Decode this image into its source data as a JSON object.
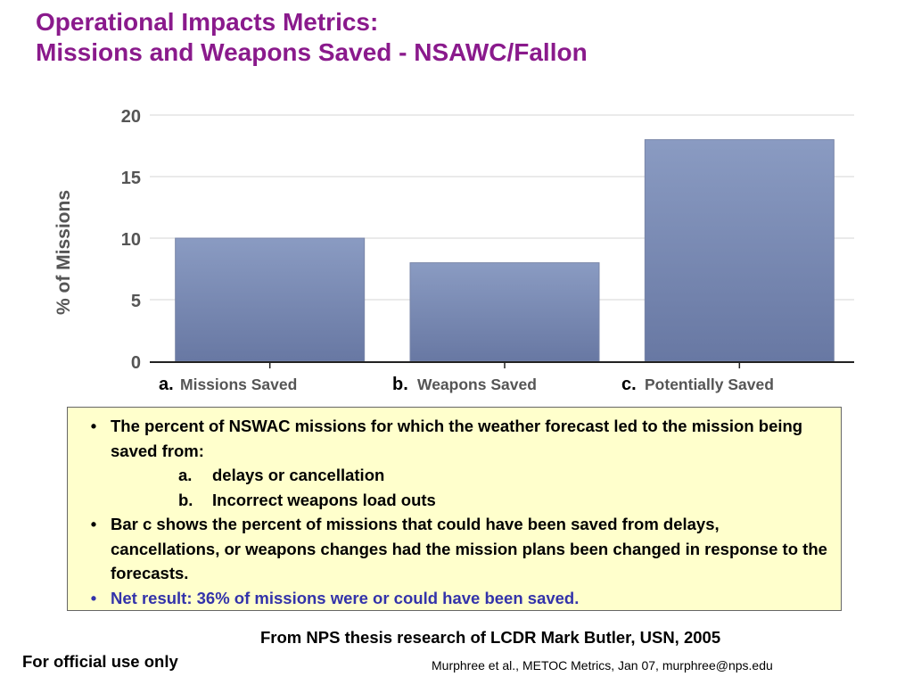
{
  "title": {
    "line1": "Operational Impacts Metrics:",
    "line2": "Missions and Weapons Saved - NSAWC/Fallon"
  },
  "colors": {
    "title": "#8a1a8c",
    "bar_top": "#8a9bc2",
    "bar_bottom": "#6878a3",
    "notes_bg": "#ffffcc",
    "highlight": "#3333aa"
  },
  "chart_data": {
    "type": "bar",
    "categories": [
      "Missions Saved",
      "Weapons Saved",
      "Potentially Saved"
    ],
    "category_prefixes": [
      "a.",
      "b.",
      "c."
    ],
    "values": [
      10,
      8,
      18
    ],
    "ylabel": "% of Missions",
    "xlabel": "",
    "ylim": [
      0,
      20
    ],
    "yticks": [
      0,
      5,
      10,
      15,
      20
    ],
    "grid": true
  },
  "notes": {
    "bullet1": "The percent of NSWAC missions for which the weather forecast led to the mission being saved from:",
    "sub_a_mark": "a.",
    "sub_a_text": "delays or cancellation",
    "sub_b_mark": "b.",
    "sub_b_text": "Incorrect weapons load outs",
    "bullet2": "Bar c shows the percent of missions that could have been saved from delays, cancellations, or weapons changes had the mission plans been changed in response to the forecasts.",
    "bullet3": "Net result: 36% of missions were or could have been saved."
  },
  "footer": {
    "source": "From NPS thesis research of LCDR Mark Butler, USN, 2005",
    "official": "For official use only",
    "credit": "Murphree et al., METOC Metrics, Jan 07, murphree@nps.edu"
  }
}
